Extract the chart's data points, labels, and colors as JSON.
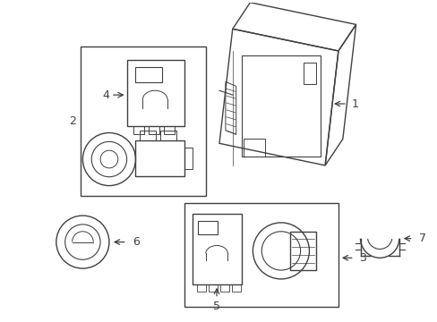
{
  "background_color": "#ffffff",
  "line_color": "#404040",
  "fig_width": 4.89,
  "fig_height": 3.6,
  "dpi": 100
}
